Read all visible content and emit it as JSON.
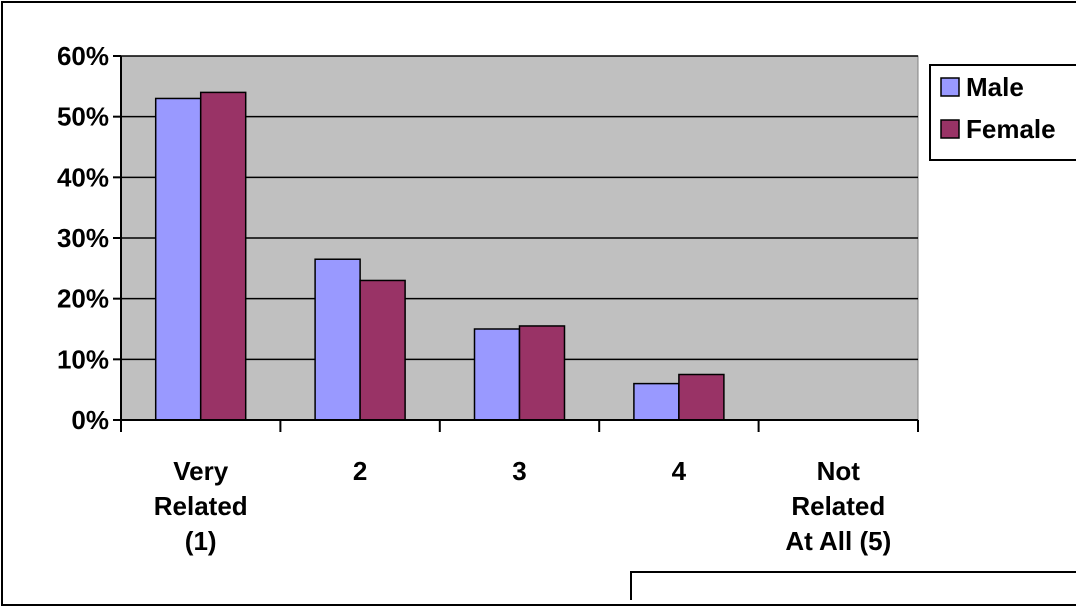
{
  "chart_data": {
    "type": "bar",
    "title": "",
    "xlabel": "",
    "ylabel": "",
    "categories": [
      [
        "Very",
        "Related",
        "(1)"
      ],
      [
        "2"
      ],
      [
        "3"
      ],
      [
        "4"
      ],
      [
        "Not",
        "Related",
        "At All (5)"
      ]
    ],
    "series": [
      {
        "name": "Male",
        "color": "#9999ff",
        "values": [
          53,
          26.5,
          15,
          6,
          0
        ]
      },
      {
        "name": "Female",
        "color": "#993366",
        "values": [
          54,
          23,
          15.5,
          7.5,
          0
        ]
      }
    ],
    "ylim": [
      0,
      60
    ],
    "yticks": [
      {
        "value": 0,
        "label": "0%"
      },
      {
        "value": 10,
        "label": "10%"
      },
      {
        "value": 20,
        "label": "20%"
      },
      {
        "value": 30,
        "label": "30%"
      },
      {
        "value": 40,
        "label": "40%"
      },
      {
        "value": 50,
        "label": "50%"
      },
      {
        "value": 60,
        "label": "60%"
      }
    ],
    "grid": true,
    "plot_background": "#c0c0c0",
    "legend_position": "top-right"
  }
}
